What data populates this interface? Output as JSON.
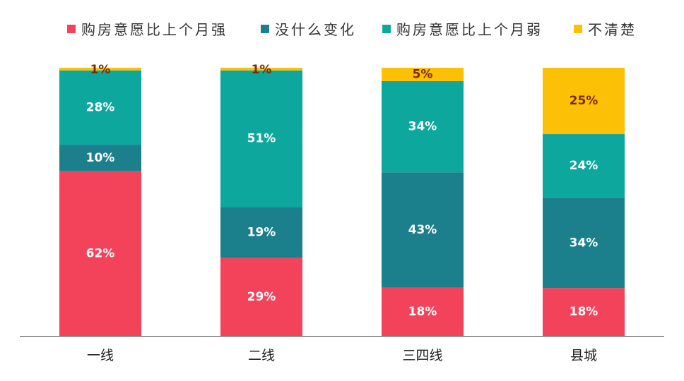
{
  "chart_data": {
    "type": "bar",
    "stacked": true,
    "percent_stacked": true,
    "legend_position": "top",
    "grid": false,
    "categories": [
      "一线",
      "二线",
      "三四线",
      "县城"
    ],
    "series": [
      {
        "name": "购房意愿比上个月强",
        "color": "#f2435a",
        "label_color": "#ffffff",
        "values": [
          62,
          29,
          18,
          18
        ]
      },
      {
        "name": "没什么变化",
        "color": "#1b7f8c",
        "label_color": "#ffffff",
        "values": [
          10,
          19,
          43,
          34
        ]
      },
      {
        "name": "购房意愿比上个月弱",
        "color": "#0da79e",
        "label_color": "#ffffff",
        "values": [
          28,
          51,
          34,
          24
        ]
      },
      {
        "name": "不清楚",
        "color": "#fcc006",
        "label_color": "#7a2c00",
        "values": [
          1,
          1,
          5,
          25
        ]
      }
    ],
    "value_suffix": "%",
    "ylim": [
      0,
      100
    ],
    "xlabel": "",
    "ylabel": ""
  }
}
